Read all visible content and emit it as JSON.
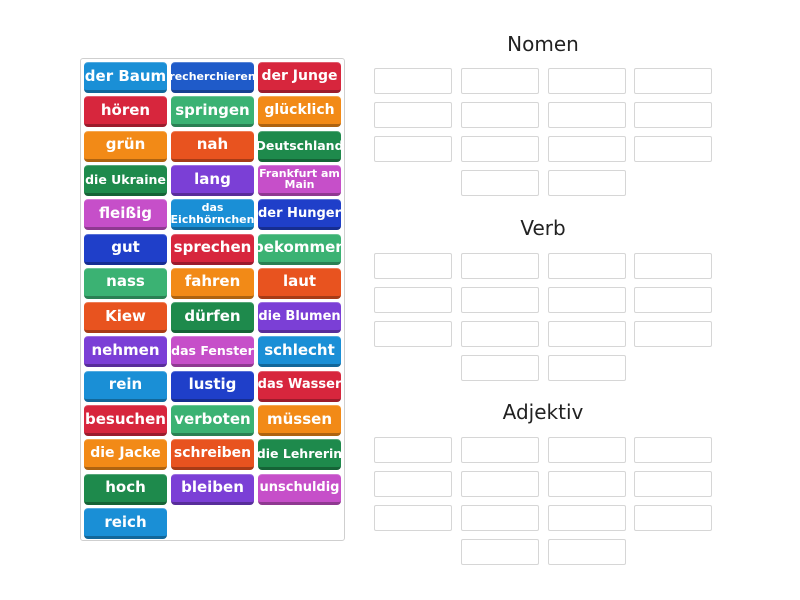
{
  "tiles": [
    {
      "label": "der Baum",
      "color": "#1a8fd6"
    },
    {
      "label": "recherchieren",
      "color": "#1f5bc9"
    },
    {
      "label": "der Junge",
      "color": "#d7263d"
    },
    {
      "label": "hören",
      "color": "#d7263d"
    },
    {
      "label": "springen",
      "color": "#3bb273"
    },
    {
      "label": "glücklich",
      "color": "#f28a17"
    },
    {
      "label": "grün",
      "color": "#f28a17"
    },
    {
      "label": "nah",
      "color": "#e8531f"
    },
    {
      "label": "Deutschland",
      "color": "#1e8a4c"
    },
    {
      "label": "die Ukraine",
      "color": "#1e8a4c"
    },
    {
      "label": "lang",
      "color": "#7b3fd6"
    },
    {
      "label": "Frankfurt am Main",
      "color": "#c64fc9"
    },
    {
      "label": "fleißig",
      "color": "#c64fc9"
    },
    {
      "label": "das Eichhörnchen",
      "color": "#1a8fd6"
    },
    {
      "label": "der Hunger",
      "color": "#1f3fc9"
    },
    {
      "label": "gut",
      "color": "#1f3fc9"
    },
    {
      "label": "sprechen",
      "color": "#d7263d"
    },
    {
      "label": "bekommen",
      "color": "#3bb273"
    },
    {
      "label": "nass",
      "color": "#3bb273"
    },
    {
      "label": "fahren",
      "color": "#f28a17"
    },
    {
      "label": "laut",
      "color": "#e8531f"
    },
    {
      "label": "Kiew",
      "color": "#e8531f"
    },
    {
      "label": "dürfen",
      "color": "#1e8a4c"
    },
    {
      "label": "die Blumen",
      "color": "#7b3fd6"
    },
    {
      "label": "nehmen",
      "color": "#7b3fd6"
    },
    {
      "label": "das Fenster",
      "color": "#c64fc9"
    },
    {
      "label": "schlecht",
      "color": "#1a8fd6"
    },
    {
      "label": "rein",
      "color": "#1a8fd6"
    },
    {
      "label": "lustig",
      "color": "#1f3fc9"
    },
    {
      "label": "das Wasser",
      "color": "#d7263d"
    },
    {
      "label": "besuchen",
      "color": "#d7263d"
    },
    {
      "label": "verboten",
      "color": "#3bb273"
    },
    {
      "label": "müssen",
      "color": "#f28a17"
    },
    {
      "label": "die Jacke",
      "color": "#f28a17"
    },
    {
      "label": "schreiben",
      "color": "#e8531f"
    },
    {
      "label": "die Lehrerin",
      "color": "#1e8a4c"
    },
    {
      "label": "hoch",
      "color": "#1e8a4c"
    },
    {
      "label": "bleiben",
      "color": "#7b3fd6"
    },
    {
      "label": "unschuldig",
      "color": "#c64fc9"
    },
    {
      "label": "reich",
      "color": "#1a8fd6"
    }
  ],
  "groups": [
    {
      "title": "Nomen",
      "slots": 14
    },
    {
      "title": "Verb",
      "slots": 14
    },
    {
      "title": "Adjektiv",
      "slots": 14
    }
  ]
}
